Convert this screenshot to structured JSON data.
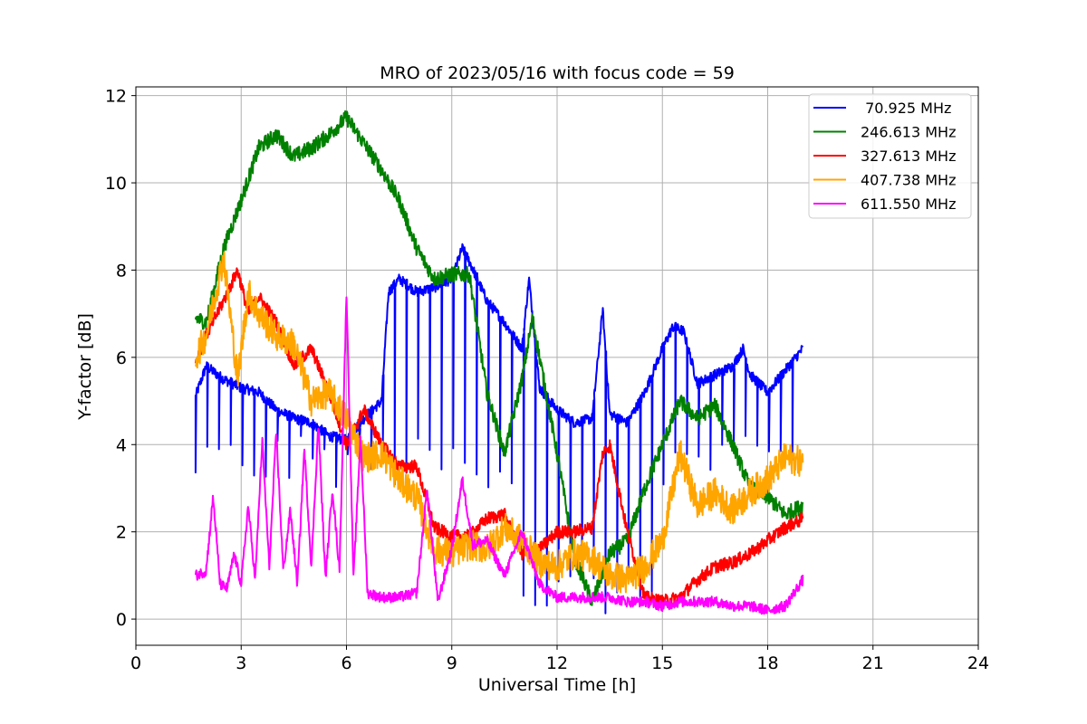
{
  "chart_data": {
    "type": "line",
    "title": "MRO of 2023/05/16 with focus code = 59",
    "xlabel": "Universal Time [h]",
    "ylabel": "Y-factor [dB]",
    "xlim": [
      0,
      24
    ],
    "ylim": [
      -0.6,
      12.2
    ],
    "xticks": [
      0,
      3,
      6,
      9,
      12,
      15,
      18,
      21,
      24
    ],
    "yticks": [
      0,
      2,
      4,
      6,
      8,
      10,
      12
    ],
    "grid": true,
    "legend_position": "top-right",
    "series": [
      {
        "name": " 70.925 MHz",
        "color": "#0000ff",
        "x": [
          1.7,
          2.0,
          2.5,
          3.0,
          3.5,
          4.0,
          4.5,
          5.0,
          5.5,
          6.0,
          6.5,
          7.0,
          7.2,
          7.5,
          8.0,
          8.5,
          9.0,
          9.3,
          9.5,
          10.0,
          10.5,
          11.0,
          11.2,
          11.5,
          12.0,
          12.5,
          13.0,
          13.3,
          13.5,
          14.0,
          14.5,
          15.0,
          15.3,
          15.6,
          16.0,
          16.5,
          17.0,
          17.3,
          17.5,
          18.0,
          18.5,
          19.0
        ],
        "y": [
          5.1,
          5.8,
          5.5,
          5.3,
          5.2,
          4.8,
          4.6,
          4.5,
          4.2,
          4.1,
          4.6,
          5.0,
          7.5,
          7.8,
          7.5,
          7.6,
          7.8,
          8.5,
          8.2,
          7.3,
          6.8,
          6.2,
          7.8,
          5.3,
          4.8,
          4.5,
          4.6,
          7.1,
          4.7,
          4.5,
          5.2,
          6.2,
          6.7,
          6.6,
          5.4,
          5.6,
          5.8,
          6.2,
          5.6,
          5.2,
          5.7,
          6.2
        ],
        "dips": {
          "start": 1.7,
          "step": 0.3333,
          "min_value": 3.0
        }
      },
      {
        "name": "246.613 MHz",
        "color": "#008000",
        "x": [
          1.7,
          2.0,
          2.5,
          3.0,
          3.5,
          4.0,
          4.5,
          5.0,
          5.5,
          6.0,
          6.5,
          7.0,
          7.5,
          8.0,
          8.5,
          9.0,
          9.5,
          10.0,
          10.5,
          11.0,
          11.3,
          11.5,
          12.0,
          12.5,
          13.0,
          13.5,
          14.0,
          14.5,
          15.0,
          15.5,
          16.0,
          16.5,
          17.0,
          17.5,
          18.0,
          18.5,
          19.0
        ],
        "y": [
          6.9,
          6.8,
          8.5,
          9.6,
          10.8,
          11.1,
          10.6,
          10.8,
          11.1,
          11.5,
          10.9,
          10.3,
          9.6,
          8.5,
          7.8,
          7.9,
          7.9,
          5.2,
          3.8,
          5.5,
          6.9,
          6.0,
          3.8,
          1.4,
          0.4,
          1.5,
          1.8,
          3.0,
          4.0,
          5.0,
          4.6,
          4.9,
          4.0,
          3.0,
          2.8,
          2.4,
          2.6
        ]
      },
      {
        "name": "327.613 MHz",
        "color": "#ff0000",
        "x": [
          1.7,
          2.0,
          2.5,
          2.9,
          3.2,
          3.5,
          4.0,
          4.5,
          5.0,
          5.5,
          6.0,
          6.5,
          7.0,
          7.5,
          8.0,
          8.5,
          9.0,
          9.5,
          10.0,
          10.5,
          11.0,
          11.5,
          12.0,
          12.5,
          13.0,
          13.3,
          13.5,
          14.0,
          14.5,
          15.0,
          15.5,
          16.0,
          16.5,
          17.0,
          17.5,
          18.0,
          18.5,
          19.0
        ],
        "y": [
          5.9,
          6.5,
          7.3,
          8.0,
          7.0,
          7.4,
          6.8,
          5.8,
          6.2,
          5.2,
          4.0,
          4.8,
          4.0,
          3.5,
          3.5,
          2.1,
          1.9,
          1.9,
          2.3,
          2.4,
          1.5,
          1.6,
          2.0,
          2.0,
          2.1,
          3.8,
          4.0,
          2.0,
          0.5,
          0.4,
          0.5,
          0.9,
          1.2,
          1.3,
          1.5,
          1.8,
          2.1,
          2.3
        ]
      },
      {
        "name": "407.738 MHz",
        "color": "#ffa500",
        "x": [
          1.7,
          2.0,
          2.5,
          2.9,
          3.2,
          3.5,
          4.0,
          4.5,
          5.0,
          5.5,
          6.0,
          6.5,
          7.0,
          7.5,
          8.0,
          8.5,
          9.0,
          9.5,
          10.0,
          10.5,
          11.0,
          11.5,
          12.0,
          12.5,
          13.0,
          13.5,
          14.0,
          14.5,
          15.0,
          15.5,
          16.0,
          16.5,
          17.0,
          17.5,
          18.0,
          18.5,
          19.0
        ],
        "y": [
          6.0,
          6.5,
          8.3,
          5.5,
          7.5,
          7.0,
          6.5,
          6.3,
          5.0,
          5.2,
          4.6,
          3.7,
          3.8,
          3.2,
          2.8,
          1.6,
          1.5,
          1.7,
          1.6,
          2.1,
          1.8,
          1.3,
          1.2,
          1.5,
          1.4,
          1.0,
          0.9,
          1.2,
          1.8,
          3.8,
          2.6,
          2.9,
          2.5,
          2.9,
          3.2,
          3.7,
          3.6
        ]
      },
      {
        "name": "611.550 MHz",
        "color": "#ff00ff",
        "x": [
          1.7,
          2.0,
          2.2,
          2.4,
          2.6,
          2.8,
          3.0,
          3.2,
          3.4,
          3.6,
          3.8,
          4.0,
          4.2,
          4.4,
          4.6,
          4.8,
          5.0,
          5.2,
          5.4,
          5.6,
          5.8,
          6.0,
          6.2,
          6.4,
          6.6,
          7.0,
          7.5,
          8.0,
          8.3,
          8.6,
          9.0,
          9.3,
          9.6,
          10.0,
          10.5,
          11.0,
          11.5,
          12.0,
          12.5,
          13.0,
          13.5,
          14.0,
          14.5,
          15.0,
          15.5,
          16.0,
          16.5,
          17.0,
          17.5,
          18.0,
          18.5,
          19.0
        ],
        "y": [
          1.0,
          1.1,
          2.8,
          0.8,
          0.7,
          1.5,
          0.8,
          2.6,
          0.9,
          4.1,
          1.2,
          4.3,
          1.1,
          2.5,
          0.8,
          3.9,
          1.2,
          4.5,
          0.9,
          3.0,
          1.1,
          7.5,
          0.9,
          4.2,
          0.6,
          0.5,
          0.5,
          0.6,
          3.0,
          0.4,
          1.6,
          3.2,
          1.7,
          1.8,
          1.0,
          2.0,
          0.8,
          0.5,
          0.5,
          0.5,
          0.5,
          0.4,
          0.4,
          0.3,
          0.4,
          0.4,
          0.4,
          0.3,
          0.3,
          0.2,
          0.3,
          0.9
        ]
      }
    ]
  }
}
